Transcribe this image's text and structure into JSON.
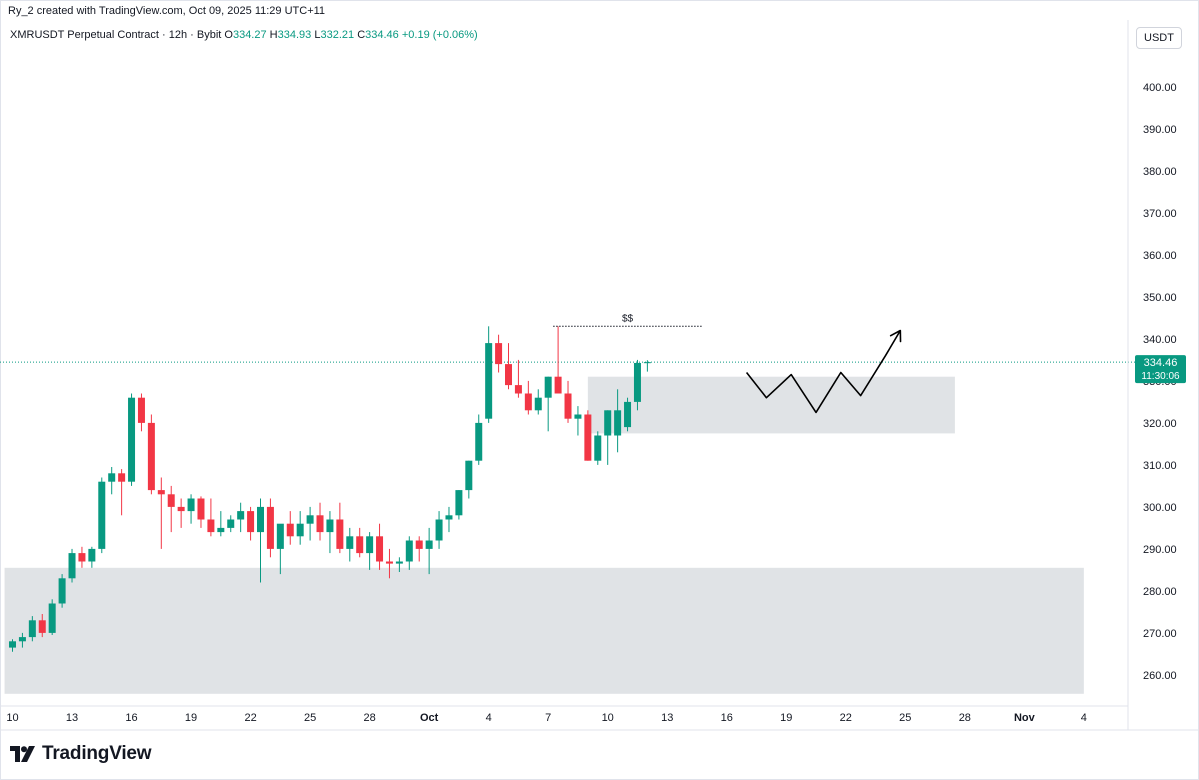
{
  "header": {
    "attribution": "Ry_2 created with TradingView.com, Oct 09, 2025 11:29 UTC+11",
    "symbol": "XMRUSDT Perpetual Contract · 12h · Bybit",
    "ohlc": [
      {
        "label": "O",
        "value": "334.27"
      },
      {
        "label": "H",
        "value": "334.93"
      },
      {
        "label": "L",
        "value": "332.21"
      },
      {
        "label": "C",
        "value": "334.46"
      }
    ],
    "change": "+0.19 (+0.06%)",
    "currency": "USDT"
  },
  "footer": {
    "logo_text": "TradingView"
  },
  "colors": {
    "up": "#089981",
    "down": "#f23645",
    "zone": "#e0e3e6",
    "axis_text": "#131722",
    "last_price_bg": "#089981"
  },
  "chart_data": {
    "type": "candlestick",
    "ylim": [
      252,
      412
    ],
    "y_ticks": [
      260,
      270,
      280,
      290,
      300,
      310,
      320,
      330,
      340,
      350,
      360,
      370,
      380,
      390,
      400
    ],
    "y_tick_labels": [
      "260.00",
      "270.00",
      "280.00",
      "290.00",
      "300.00",
      "310.00",
      "320.00",
      "330.00",
      "340.00",
      "350.00",
      "360.00",
      "370.00",
      "380.00",
      "390.00",
      "400.00"
    ],
    "x_ticks": [
      {
        "label": "10",
        "i": 0
      },
      {
        "label": "13",
        "i": 6
      },
      {
        "label": "16",
        "i": 12
      },
      {
        "label": "19",
        "i": 18
      },
      {
        "label": "22",
        "i": 24
      },
      {
        "label": "25",
        "i": 30
      },
      {
        "label": "28",
        "i": 36
      },
      {
        "label": "Oct",
        "i": 42
      },
      {
        "label": "4",
        "i": 48
      },
      {
        "label": "7",
        "i": 54
      },
      {
        "label": "10",
        "i": 60
      },
      {
        "label": "13",
        "i": 66
      },
      {
        "label": "16",
        "i": 72
      },
      {
        "label": "19",
        "i": 78
      },
      {
        "label": "22",
        "i": 84
      },
      {
        "label": "25",
        "i": 90
      },
      {
        "label": "28",
        "i": 96
      },
      {
        "label": "Nov",
        "i": 102
      },
      {
        "label": "4",
        "i": 108
      }
    ],
    "candles": [
      [
        266.5,
        268.5,
        265.5,
        268
      ],
      [
        268,
        270,
        266.5,
        269
      ],
      [
        269,
        274,
        268,
        273
      ],
      [
        273,
        274.5,
        269,
        270
      ],
      [
        270,
        278,
        269.5,
        277
      ],
      [
        277,
        284,
        276,
        283
      ],
      [
        283,
        290,
        282,
        289
      ],
      [
        289,
        290.5,
        285.5,
        287
      ],
      [
        287,
        290.5,
        285.5,
        290
      ],
      [
        290,
        307,
        289,
        306
      ],
      [
        306,
        309.5,
        303,
        308
      ],
      [
        308,
        309,
        298,
        306
      ],
      [
        306,
        327,
        305,
        326
      ],
      [
        326,
        327,
        318,
        320
      ],
      [
        320,
        322,
        303,
        304
      ],
      [
        304,
        307,
        290,
        303
      ],
      [
        303,
        305,
        294,
        300
      ],
      [
        300,
        302,
        295,
        299
      ],
      [
        299,
        303,
        296,
        302
      ],
      [
        302,
        302.5,
        295,
        297
      ],
      [
        297,
        302,
        293,
        294
      ],
      [
        294,
        299,
        293,
        295
      ],
      [
        295,
        298,
        294,
        297
      ],
      [
        297,
        301,
        294,
        299
      ],
      [
        299,
        300,
        292,
        294
      ],
      [
        294,
        302,
        282,
        300
      ],
      [
        300,
        302,
        288,
        290
      ],
      [
        290,
        295,
        284,
        296
      ],
      [
        296,
        299,
        291,
        293
      ],
      [
        293,
        299,
        291,
        296
      ],
      [
        296,
        300,
        292,
        298
      ],
      [
        298,
        301,
        292,
        294
      ],
      [
        294,
        299,
        289,
        297
      ],
      [
        297,
        301,
        289,
        290
      ],
      [
        290,
        295,
        287,
        293
      ],
      [
        293,
        295,
        288,
        289
      ],
      [
        289,
        294,
        285,
        293
      ],
      [
        293,
        296,
        285,
        287
      ],
      [
        287,
        290,
        283,
        286.5
      ],
      [
        286.5,
        288,
        284.5,
        287
      ],
      [
        287,
        293,
        285,
        292
      ],
      [
        292,
        293,
        287,
        290
      ],
      [
        290,
        295,
        284,
        292
      ],
      [
        292,
        299,
        290,
        297
      ],
      [
        297,
        300,
        294,
        298
      ],
      [
        298,
        304,
        297,
        304
      ],
      [
        304,
        311,
        302,
        311
      ],
      [
        311,
        322,
        310,
        320
      ],
      [
        321,
        343,
        320,
        339
      ],
      [
        339,
        341,
        332,
        334
      ],
      [
        334,
        339,
        328,
        329
      ],
      [
        329,
        335,
        326,
        327
      ],
      [
        327,
        330,
        322,
        323
      ],
      [
        323,
        328,
        322,
        326
      ],
      [
        326,
        331,
        318,
        331
      ],
      [
        331,
        343,
        328,
        327
      ],
      [
        327,
        330,
        320,
        321
      ],
      [
        321,
        324,
        317,
        322
      ],
      [
        322,
        323,
        311,
        311
      ],
      [
        311,
        318,
        310,
        317
      ],
      [
        317,
        323,
        310,
        323
      ],
      [
        317,
        328,
        313,
        323
      ],
      [
        319,
        326,
        318,
        325
      ],
      [
        325,
        335,
        323,
        334.27
      ],
      [
        334.27,
        334.93,
        332.21,
        334.46
      ]
    ],
    "last_price": {
      "value": 334.46,
      "label": "334.46",
      "countdown": "11:30:06"
    },
    "zones": [
      {
        "i_from": -0.8,
        "i_to": 108,
        "y_low": 255.5,
        "y_high": 285.5
      },
      {
        "i_from": 58,
        "i_to": 95,
        "y_low": 317.5,
        "y_high": 331
      }
    ],
    "liquidity_marker": {
      "label": "$$",
      "i_from": 54.5,
      "i_to": 69.5,
      "y": 343
    },
    "projection_path": [
      [
        74,
        332
      ],
      [
        76,
        326
      ],
      [
        78.5,
        331.5
      ],
      [
        81,
        322.5
      ],
      [
        83.5,
        332
      ],
      [
        85.5,
        326.5
      ],
      [
        88,
        336
      ],
      [
        89.5,
        342
      ]
    ]
  }
}
